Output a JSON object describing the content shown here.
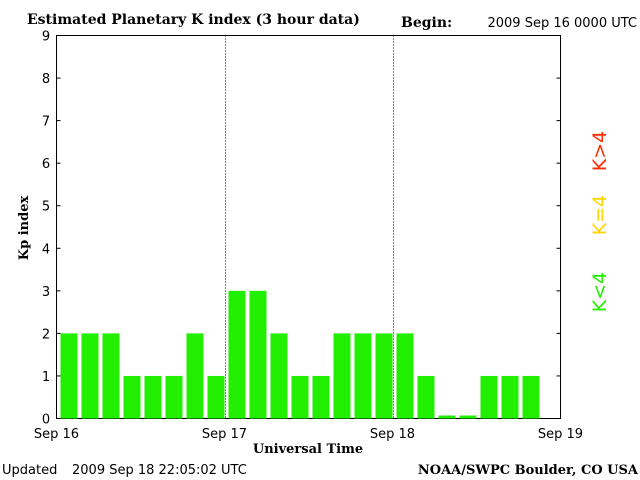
{
  "header": {
    "begin_label": "Begin:",
    "begin_value": "2009 Sep 16 0000 UTC"
  },
  "footer": {
    "updated_label": "Updated",
    "updated_value": "2009 Sep 18 22:05:02 UTC",
    "source": "NOAA/SWPC Boulder, CO USA"
  },
  "legend": [
    {
      "label": "K>4",
      "color": "#ff2a00"
    },
    {
      "label": "K=4",
      "color": "#ffd400"
    },
    {
      "label": "K<4",
      "color": "#22ee00"
    }
  ],
  "chart_data": {
    "type": "bar",
    "title": "Estimated Planetary K index (3 hour data)",
    "xlabel": "Universal Time",
    "ylabel": "Kp index",
    "ylim": [
      0,
      9
    ],
    "yticks": [
      "0",
      "1",
      "2",
      "3",
      "4",
      "5",
      "6",
      "7",
      "8",
      "9"
    ],
    "xticks": [
      "Sep 16",
      "Sep 17",
      "Sep 18",
      "Sep 19"
    ],
    "x_interval_hours": 3,
    "values": [
      2,
      2,
      2,
      1,
      1,
      1,
      2,
      1,
      3,
      3,
      2,
      1,
      1,
      2,
      2,
      2,
      2,
      1,
      0.07,
      0.07,
      1,
      1,
      1
    ],
    "bar_color": "#22ee00",
    "day_separators": "dotted",
    "grid": false
  }
}
